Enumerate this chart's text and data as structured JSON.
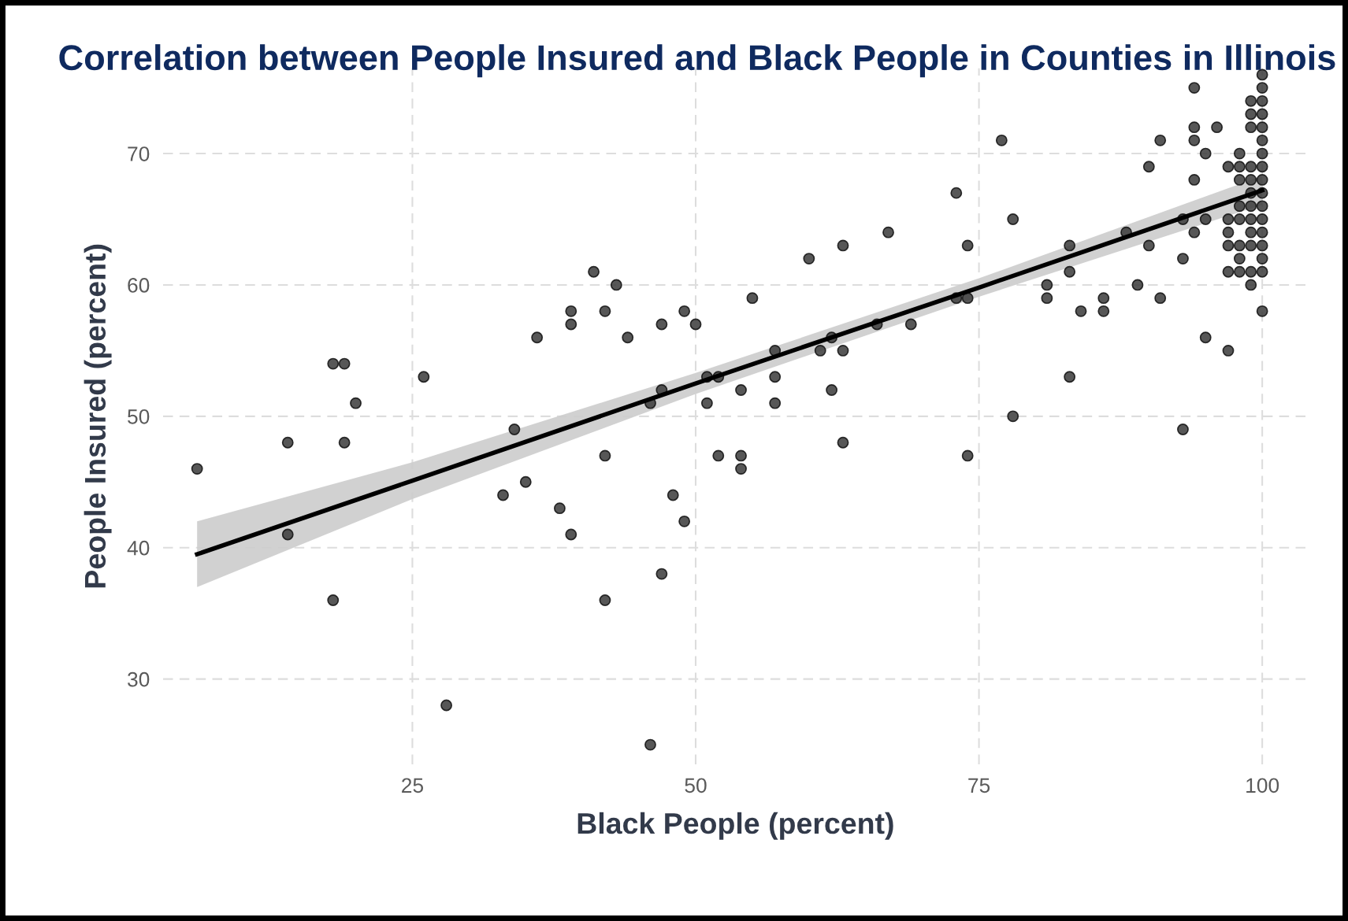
{
  "chart_data": {
    "type": "scatter",
    "title": "Correlation between People Insured and Black People in Counties in Illinois",
    "xlabel": "Black People (percent)",
    "ylabel": "People Insured (percent)",
    "xlim": [
      3,
      104
    ],
    "ylim": [
      23.5,
      76.5
    ],
    "xticks": [
      25,
      50,
      75,
      100
    ],
    "yticks": [
      30,
      40,
      50,
      60,
      70
    ],
    "grid": true,
    "marker": "circle",
    "series": [
      {
        "color": "#3a3a3a",
        "x": [
          6,
          14,
          14,
          18,
          19,
          20,
          19,
          18,
          26,
          28,
          33,
          34,
          35,
          36,
          38,
          39,
          39,
          39,
          41,
          42,
          43,
          42,
          42,
          44,
          46,
          46,
          47,
          47,
          47,
          48,
          49,
          49,
          50,
          51,
          51,
          52,
          52,
          54,
          54,
          54,
          55,
          57,
          57,
          57,
          60,
          61,
          62,
          62,
          63,
          63,
          63,
          66,
          67,
          69,
          73,
          73,
          74,
          74,
          74,
          77,
          78,
          78,
          81,
          81,
          83,
          83,
          83,
          84,
          86,
          86,
          88,
          89,
          90,
          90,
          91,
          91,
          93,
          93,
          93,
          94,
          94,
          94,
          94,
          94,
          95,
          95,
          95,
          96,
          97,
          97,
          97,
          97,
          97,
          97,
          98,
          98,
          98,
          98,
          98,
          98,
          98,
          98,
          99,
          99,
          99,
          99,
          99,
          99,
          99,
          99,
          99,
          99,
          99,
          99,
          100,
          100,
          100,
          100,
          100,
          100,
          100,
          100,
          100,
          100,
          100,
          100,
          100,
          100,
          100,
          100,
          100
        ],
        "values": [
          46,
          48,
          41,
          54,
          54,
          51,
          48,
          36,
          53,
          28,
          44,
          49,
          45,
          56,
          43,
          58,
          57,
          41,
          61,
          58,
          60,
          47,
          36,
          56,
          25,
          51,
          57,
          52,
          38,
          44,
          58,
          42,
          57,
          51,
          53,
          47,
          53,
          52,
          47,
          46,
          59,
          55,
          53,
          51,
          62,
          55,
          52,
          56,
          63,
          55,
          48,
          57,
          64,
          57,
          67,
          59,
          59,
          63,
          47,
          71,
          65,
          50,
          60,
          59,
          63,
          61,
          53,
          58,
          59,
          58,
          64,
          60,
          69,
          63,
          71,
          59,
          62,
          65,
          49,
          75,
          72,
          71,
          68,
          64,
          70,
          65,
          56,
          72,
          69,
          65,
          64,
          63,
          61,
          55,
          70,
          69,
          68,
          66,
          65,
          63,
          62,
          61,
          74,
          73,
          72,
          69,
          68,
          67,
          66,
          65,
          64,
          63,
          61,
          60,
          76,
          75,
          74,
          73,
          72,
          71,
          70,
          69,
          68,
          67,
          66,
          65,
          64,
          63,
          62,
          61,
          58
        ]
      },
      {
        "type": "line",
        "color": "#000000",
        "marker": "none",
        "x": [
          6,
          25,
          50,
          75,
          100
        ],
        "values": [
          39.5,
          45.1,
          52.5,
          59.8,
          67.2
        ],
        "lower": [
          37.0,
          43.7,
          51.7,
          59.1,
          66.1
        ],
        "upper": [
          42.0,
          46.5,
          53.3,
          60.5,
          68.3
        ]
      }
    ]
  }
}
